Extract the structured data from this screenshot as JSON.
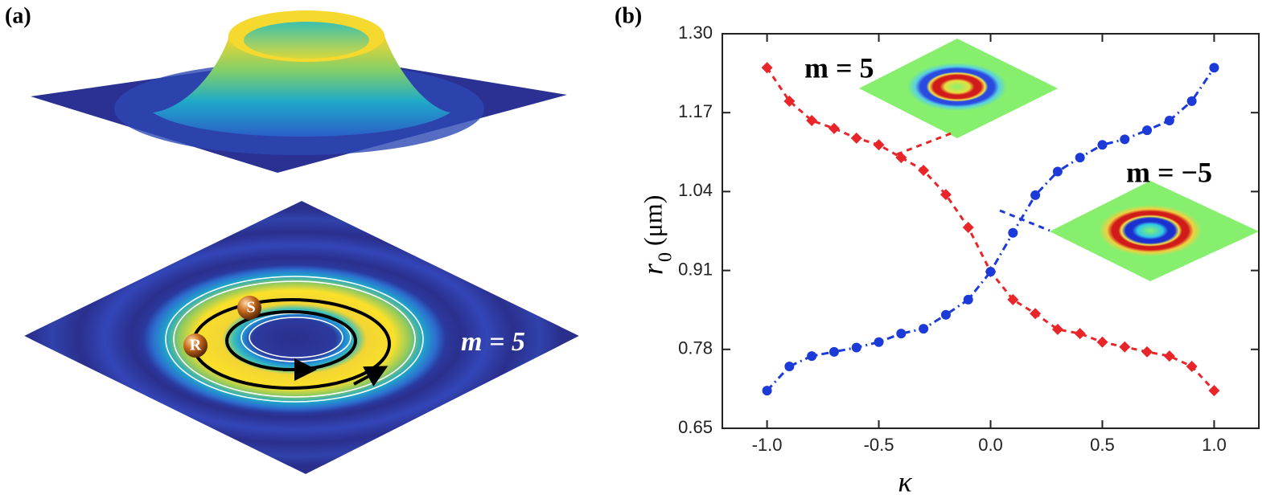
{
  "panel_a": {
    "label": "(a)",
    "annotation": "m = 5",
    "marker_s": "S",
    "marker_r": "R"
  },
  "chart_data": {
    "type": "line",
    "label": "(b)",
    "x_label": "κ",
    "y_label": "r",
    "y_label_subscript": "0",
    "y_label_unit": "(μm)",
    "x": [
      -1.0,
      -0.9,
      -0.8,
      -0.7,
      -0.6,
      -0.5,
      -0.4,
      -0.3,
      -0.2,
      -0.1,
      0.0,
      0.1,
      0.2,
      0.3,
      0.4,
      0.5,
      0.6,
      0.7,
      0.8,
      0.9,
      1.0
    ],
    "series": [
      {
        "color": "#e8262a",
        "marker": "diamond",
        "dash": "7,6",
        "values": [
          1.244,
          1.189,
          1.157,
          1.144,
          1.128,
          1.117,
          1.096,
          1.075,
          1.035,
          0.981,
          0.908,
          0.862,
          0.839,
          0.813,
          0.806,
          0.792,
          0.784,
          0.776,
          0.769,
          0.752,
          0.712
        ]
      },
      {
        "color": "#1c3ad8",
        "marker": "circle",
        "dash": "9,5,2,5",
        "values": [
          0.712,
          0.752,
          0.769,
          0.776,
          0.783,
          0.792,
          0.806,
          0.814,
          0.837,
          0.862,
          0.908,
          0.972,
          1.034,
          1.073,
          1.096,
          1.117,
          1.126,
          1.141,
          1.157,
          1.189,
          1.244
        ]
      }
    ],
    "xlim": [
      -1.2,
      1.2
    ],
    "xticks": [
      {
        "value": -1.0,
        "label": "-1.0"
      },
      -0.5,
      {
        "value": 0.0,
        "label": "0.0"
      },
      0.5,
      {
        "value": 1.0,
        "label": "1.0"
      }
    ],
    "ylim": [
      0.65,
      1.3
    ],
    "yticks": [
      0.65,
      0.78,
      0.91,
      1.04,
      1.17,
      {
        "value": 1.3,
        "label": "1.30"
      }
    ],
    "annotations": [
      "m = 5",
      "m = −5"
    ]
  }
}
